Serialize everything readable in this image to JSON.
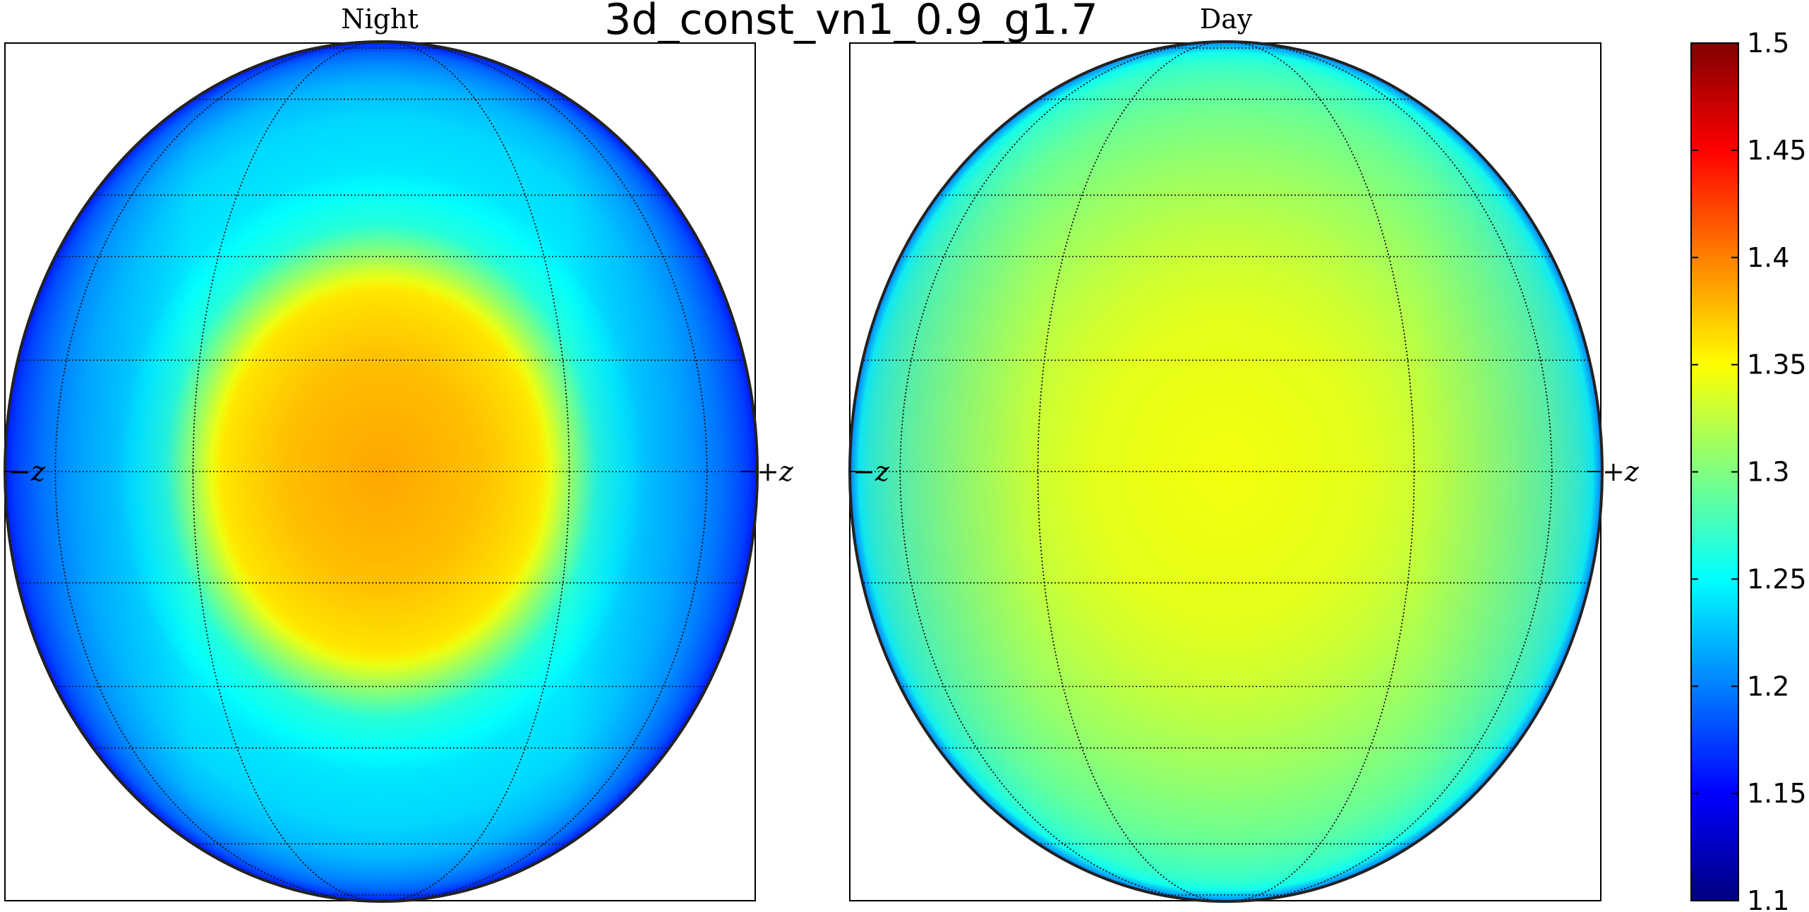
{
  "chart_data": {
    "type": "heatmap",
    "title": "3d_const_vn1_0.9_g1.7",
    "colormap": "jet",
    "panels": [
      {
        "name": "Night",
        "left_label": "−z",
        "right_label": "+z",
        "peak_value": 1.385,
        "peak_lat_deg": 0,
        "peak_lon_deg": 0,
        "hotspot_radius_deg": 26,
        "mid_value": 1.235,
        "limb_value": 1.16,
        "limb_profile": [
          [
            0,
            1.385
          ],
          [
            15,
            1.375
          ],
          [
            25,
            1.36
          ],
          [
            30,
            1.31
          ],
          [
            35,
            1.265
          ],
          [
            45,
            1.24
          ],
          [
            55,
            1.235
          ],
          [
            65,
            1.22
          ],
          [
            75,
            1.195
          ],
          [
            82,
            1.175
          ],
          [
            90,
            1.16
          ]
        ]
      },
      {
        "name": "Day",
        "left_label": "−z",
        "right_label": "+z",
        "peak_value": 1.345,
        "peak_lat_deg": 0,
        "peak_lon_deg": 0,
        "hotspot_radius_deg": 25,
        "mid_value": 1.3,
        "limb_value": 1.2,
        "limb_profile": [
          [
            0,
            1.345
          ],
          [
            20,
            1.34
          ],
          [
            30,
            1.33
          ],
          [
            45,
            1.31
          ],
          [
            60,
            1.29
          ],
          [
            72,
            1.27
          ],
          [
            80,
            1.25
          ],
          [
            86,
            1.225
          ],
          [
            90,
            1.2
          ]
        ]
      }
    ],
    "colorbar": {
      "min": 1.1,
      "max": 1.5,
      "ticks": [
        "1.1",
        "1.15",
        "1.2",
        "1.25",
        "1.3",
        "1.35",
        "1.4",
        "1.45",
        "1.5"
      ]
    },
    "grid": true
  },
  "colors": {
    "background": "#ffffff",
    "axis": "#000000",
    "grid": "#000000"
  }
}
